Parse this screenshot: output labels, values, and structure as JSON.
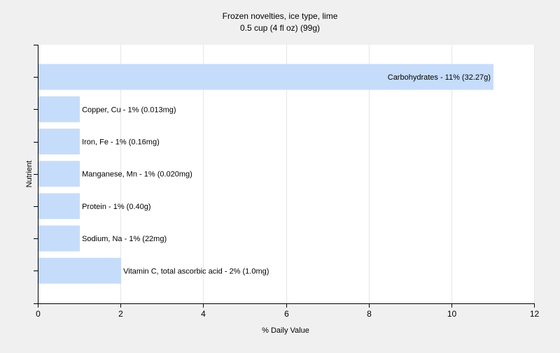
{
  "chart_data": {
    "type": "bar",
    "orientation": "horizontal",
    "title": "Frozen novelties, ice type, lime",
    "subtitle": "0.5 cup (4 fl oz) (99g)",
    "xlabel": "% Daily Value",
    "ylabel": "Nutrient",
    "xlim": [
      0,
      12
    ],
    "xticks": [
      0,
      2,
      4,
      6,
      8,
      10,
      12
    ],
    "grid": true,
    "bar_color": "#c6dcfb",
    "categories": [
      "Carbohydrates",
      "Copper, Cu",
      "Iron, Fe",
      "Manganese, Mn",
      "Protein",
      "Sodium, Na",
      "Vitamin C, total ascorbic acid"
    ],
    "values": [
      11,
      1,
      1,
      1,
      1,
      1,
      2
    ],
    "labels": [
      "Carbohydrates - 11% (32.27g)",
      "Copper, Cu - 1% (0.013mg)",
      "Iron, Fe - 1% (0.16mg)",
      "Manganese, Mn - 1% (0.020mg)",
      "Protein - 1% (0.40g)",
      "Sodium, Na - 1% (22mg)",
      "Vitamin C, total ascorbic acid - 2% (1.0mg)"
    ]
  }
}
